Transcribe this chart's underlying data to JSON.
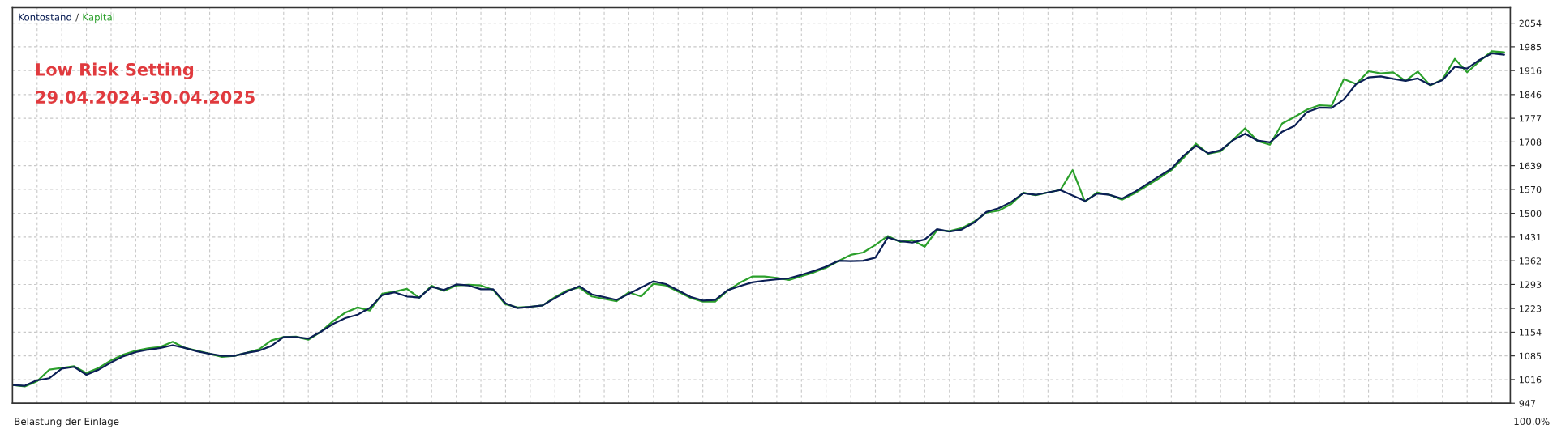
{
  "chart_data": {
    "type": "line",
    "title": "Low Risk Setting",
    "subtitle": "29.04.2024-30.04.2025",
    "annotations": [
      "/",
      "Belastung der Einlage",
      "100.0%"
    ],
    "grid": true,
    "tick_labels": "y",
    "line_style": "solid",
    "categories": [
      null,
      null,
      null,
      null,
      null,
      null,
      null,
      null,
      null,
      null,
      null,
      null,
      null,
      null,
      null,
      null,
      null,
      null,
      null,
      null,
      null,
      null,
      null,
      null,
      null,
      null,
      null,
      null,
      null,
      null,
      null,
      null,
      null,
      null,
      null,
      null,
      null,
      null,
      null,
      null,
      null,
      null,
      null,
      null,
      null,
      null,
      null,
      null,
      null,
      null,
      null,
      null,
      null,
      null,
      null,
      null,
      null,
      null,
      null,
      null,
      null,
      null,
      null,
      null,
      null,
      null,
      null,
      null,
      null,
      null,
      null,
      null,
      null,
      null,
      null,
      null,
      null,
      null,
      null,
      null,
      null,
      null,
      null,
      null,
      null,
      null,
      null,
      null,
      null,
      null,
      null,
      null,
      null,
      null,
      null,
      null,
      null,
      null,
      null,
      null,
      null,
      null,
      null,
      null,
      null,
      null,
      null,
      null,
      null,
      null,
      null,
      null,
      null,
      null,
      null,
      null,
      null,
      null,
      null,
      null,
      null,
      null
    ],
    "ylim": [
      947,
      2099
    ],
    "yticks": [
      947,
      1016,
      1085,
      1154,
      1223,
      1293,
      1362,
      1431,
      1500,
      1570,
      1639,
      1708,
      1777,
      1846,
      1916,
      1985,
      2054
    ],
    "series": [
      {
        "name": "Kapital",
        "color": "#2ca02c",
        "values": [
          1000,
          996,
          1011,
          1045,
          1050,
          1055,
          1035,
          1050,
          1072,
          1089,
          1100,
          1107,
          1111,
          1126,
          1108,
          1100,
          1091,
          1082,
          1085,
          1094,
          1104,
          1130,
          1140,
          1141,
          1132,
          1155,
          1186,
          1211,
          1226,
          1217,
          1266,
          1272,
          1280,
          1254,
          1289,
          1274,
          1290,
          1292,
          1290,
          1277,
          1235,
          1226,
          1228,
          1232,
          1256,
          1276,
          1284,
          1258,
          1251,
          1244,
          1270,
          1258,
          1295,
          1290,
          1272,
          1254,
          1243,
          1243,
          1275,
          1298,
          1316,
          1316,
          1312,
          1306,
          1317,
          1328,
          1342,
          1361,
          1379,
          1386,
          1408,
          1434,
          1417,
          1422,
          1403,
          1451,
          1448,
          1457,
          1476,
          1502,
          1508,
          1527,
          1560,
          1553,
          1561,
          1568,
          1626,
          1534,
          1561,
          1554,
          1540,
          1558,
          1580,
          1602,
          1626,
          1662,
          1703,
          1674,
          1681,
          1714,
          1748,
          1711,
          1700,
          1762,
          1781,
          1802,
          1815,
          1813,
          1891,
          1877,
          1914,
          1908,
          1911,
          1886,
          1913,
          1873,
          1890,
          1950,
          1911,
          1943,
          1972,
          1969
        ]
      },
      {
        "name": "Kontostand",
        "color": "#0b1f55",
        "values": [
          1000,
          998,
          1014,
          1020,
          1048,
          1053,
          1030,
          1045,
          1066,
          1084,
          1096,
          1103,
          1108,
          1116,
          1108,
          1098,
          1091,
          1085,
          1085,
          1094,
          1100,
          1114,
          1140,
          1140,
          1135,
          1155,
          1178,
          1195,
          1205,
          1225,
          1262,
          1270,
          1258,
          1255,
          1286,
          1277,
          1293,
          1290,
          1279,
          1279,
          1238,
          1224,
          1228,
          1232,
          1253,
          1273,
          1288,
          1264,
          1256,
          1248,
          1266,
          1284,
          1302,
          1294,
          1276,
          1257,
          1246,
          1248,
          1276,
          1288,
          1299,
          1304,
          1308,
          1311,
          1321,
          1332,
          1345,
          1362,
          1361,
          1362,
          1371,
          1430,
          1419,
          1415,
          1424,
          1454,
          1447,
          1453,
          1473,
          1504,
          1515,
          1533,
          1559,
          1554,
          1561,
          1568,
          1552,
          1536,
          1558,
          1554,
          1543,
          1562,
          1585,
          1608,
          1630,
          1668,
          1697,
          1675,
          1684,
          1713,
          1732,
          1712,
          1707,
          1738,
          1755,
          1795,
          1808,
          1807,
          1832,
          1877,
          1896,
          1899,
          1892,
          1886,
          1893,
          1874,
          1888,
          1927,
          1922,
          1947,
          1966,
          1962
        ]
      }
    ]
  }
}
